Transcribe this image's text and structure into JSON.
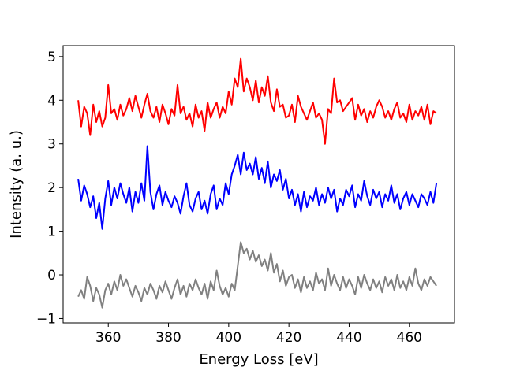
{
  "chart_data": {
    "type": "line",
    "title": "",
    "xlabel": "Energy Loss [eV]",
    "ylabel": "Intensity (a. u.)",
    "xlim": [
      345,
      475
    ],
    "ylim": [
      -1.1,
      5.25
    ],
    "xticks": [
      360,
      380,
      400,
      420,
      440,
      460
    ],
    "yticks": [
      -1,
      0,
      1,
      2,
      3,
      4,
      5
    ],
    "ytick_labels": [
      "−1",
      "0",
      "1",
      "2",
      "3",
      "4",
      "5"
    ],
    "grid": false,
    "legend": "none",
    "series": [
      {
        "color": "#ff0000",
        "x": [
          350,
          351,
          352,
          353,
          354,
          355,
          356,
          357,
          358,
          359,
          360,
          361,
          362,
          363,
          364,
          365,
          366,
          367,
          368,
          369,
          370,
          371,
          372,
          373,
          374,
          375,
          376,
          377,
          378,
          379,
          380,
          381,
          382,
          383,
          384,
          385,
          386,
          387,
          388,
          389,
          390,
          391,
          392,
          393,
          394,
          395,
          396,
          397,
          398,
          399,
          400,
          401,
          402,
          403,
          404,
          405,
          406,
          407,
          408,
          409,
          410,
          411,
          412,
          413,
          414,
          415,
          416,
          417,
          418,
          419,
          420,
          421,
          422,
          423,
          424,
          425,
          426,
          427,
          428,
          429,
          430,
          431,
          432,
          433,
          434,
          435,
          436,
          437,
          438,
          439,
          440,
          441,
          442,
          443,
          444,
          445,
          446,
          447,
          448,
          449,
          450,
          451,
          452,
          453,
          454,
          455,
          456,
          457,
          458,
          459,
          460,
          461,
          462,
          463,
          464,
          465,
          466,
          467,
          468,
          469
        ],
        "y": [
          4.0,
          3.4,
          3.85,
          3.7,
          3.2,
          3.9,
          3.5,
          3.75,
          3.4,
          3.6,
          4.35,
          3.7,
          3.8,
          3.55,
          3.9,
          3.65,
          3.8,
          4.05,
          3.75,
          4.1,
          3.85,
          3.6,
          3.9,
          4.15,
          3.75,
          3.6,
          3.85,
          3.5,
          3.9,
          3.7,
          3.45,
          3.8,
          3.65,
          4.35,
          3.7,
          3.85,
          3.55,
          3.7,
          3.4,
          3.9,
          3.6,
          3.75,
          3.3,
          3.95,
          3.6,
          3.8,
          3.95,
          3.6,
          3.85,
          3.7,
          4.2,
          3.9,
          4.5,
          4.3,
          4.95,
          4.2,
          4.5,
          4.3,
          4.0,
          4.45,
          3.95,
          4.3,
          4.1,
          4.55,
          3.95,
          3.75,
          4.25,
          3.85,
          3.9,
          3.6,
          3.65,
          3.9,
          3.5,
          4.1,
          3.85,
          3.7,
          3.55,
          3.75,
          3.95,
          3.6,
          3.7,
          3.55,
          3.0,
          3.8,
          3.7,
          4.5,
          3.95,
          4.0,
          3.75,
          3.85,
          3.95,
          4.05,
          3.55,
          3.9,
          3.65,
          3.8,
          3.5,
          3.75,
          3.6,
          3.85,
          4.0,
          3.85,
          3.6,
          3.75,
          3.55,
          3.8,
          3.95,
          3.6,
          3.7,
          3.5,
          3.9,
          3.55,
          3.75,
          3.65,
          3.85,
          3.55,
          3.9,
          3.45,
          3.75,
          3.7
        ]
      },
      {
        "color": "#0000ff",
        "x": [
          350,
          351,
          352,
          353,
          354,
          355,
          356,
          357,
          358,
          359,
          360,
          361,
          362,
          363,
          364,
          365,
          366,
          367,
          368,
          369,
          370,
          371,
          372,
          373,
          374,
          375,
          376,
          377,
          378,
          379,
          380,
          381,
          382,
          383,
          384,
          385,
          386,
          387,
          388,
          389,
          390,
          391,
          392,
          393,
          394,
          395,
          396,
          397,
          398,
          399,
          400,
          401,
          402,
          403,
          404,
          405,
          406,
          407,
          408,
          409,
          410,
          411,
          412,
          413,
          414,
          415,
          416,
          417,
          418,
          419,
          420,
          421,
          422,
          423,
          424,
          425,
          426,
          427,
          428,
          429,
          430,
          431,
          432,
          433,
          434,
          435,
          436,
          437,
          438,
          439,
          440,
          441,
          442,
          443,
          444,
          445,
          446,
          447,
          448,
          449,
          450,
          451,
          452,
          453,
          454,
          455,
          456,
          457,
          458,
          459,
          460,
          461,
          462,
          463,
          464,
          465,
          466,
          467,
          468,
          469
        ],
        "y": [
          2.2,
          1.7,
          2.05,
          1.85,
          1.55,
          1.8,
          1.3,
          1.65,
          1.05,
          1.75,
          2.15,
          1.6,
          2.0,
          1.75,
          2.1,
          1.85,
          1.65,
          2.0,
          1.45,
          1.9,
          1.65,
          2.1,
          1.7,
          2.95,
          1.9,
          1.5,
          1.85,
          2.05,
          1.6,
          1.9,
          1.7,
          1.55,
          1.8,
          1.65,
          1.4,
          1.8,
          2.1,
          1.6,
          1.45,
          1.75,
          1.9,
          1.5,
          1.7,
          1.4,
          1.85,
          2.05,
          1.5,
          1.75,
          1.6,
          2.1,
          1.85,
          2.3,
          2.5,
          2.75,
          2.3,
          2.8,
          2.4,
          2.55,
          2.3,
          2.7,
          2.2,
          2.45,
          2.1,
          2.6,
          2.0,
          2.3,
          2.15,
          2.4,
          1.95,
          2.2,
          1.75,
          1.95,
          1.6,
          1.85,
          1.45,
          1.9,
          1.55,
          1.8,
          1.7,
          2.0,
          1.6,
          1.85,
          1.65,
          2.0,
          1.75,
          1.95,
          1.45,
          1.75,
          1.6,
          1.95,
          1.8,
          2.05,
          1.55,
          1.85,
          1.7,
          2.15,
          1.8,
          1.6,
          1.95,
          1.75,
          1.9,
          1.55,
          1.85,
          1.7,
          2.05,
          1.65,
          1.85,
          1.5,
          1.75,
          1.9,
          1.6,
          1.85,
          1.7,
          1.55,
          1.85,
          1.75,
          1.6,
          1.9,
          1.65,
          2.1
        ]
      },
      {
        "color": "#808080",
        "x": [
          350,
          351,
          352,
          353,
          354,
          355,
          356,
          357,
          358,
          359,
          360,
          361,
          362,
          363,
          364,
          365,
          366,
          367,
          368,
          369,
          370,
          371,
          372,
          373,
          374,
          375,
          376,
          377,
          378,
          379,
          380,
          381,
          382,
          383,
          384,
          385,
          386,
          387,
          388,
          389,
          390,
          391,
          392,
          393,
          394,
          395,
          396,
          397,
          398,
          399,
          400,
          401,
          402,
          403,
          404,
          405,
          406,
          407,
          408,
          409,
          410,
          411,
          412,
          413,
          414,
          415,
          416,
          417,
          418,
          419,
          420,
          421,
          422,
          423,
          424,
          425,
          426,
          427,
          428,
          429,
          430,
          431,
          432,
          433,
          434,
          435,
          436,
          437,
          438,
          439,
          440,
          441,
          442,
          443,
          444,
          445,
          446,
          447,
          448,
          449,
          450,
          451,
          452,
          453,
          454,
          455,
          456,
          457,
          458,
          459,
          460,
          461,
          462,
          463,
          464,
          465,
          466,
          467,
          468,
          469
        ],
        "y": [
          -0.5,
          -0.35,
          -0.55,
          -0.05,
          -0.25,
          -0.6,
          -0.3,
          -0.45,
          -0.75,
          -0.35,
          -0.2,
          -0.45,
          -0.15,
          -0.35,
          0.0,
          -0.25,
          -0.1,
          -0.3,
          -0.5,
          -0.25,
          -0.4,
          -0.6,
          -0.3,
          -0.45,
          -0.2,
          -0.35,
          -0.55,
          -0.25,
          -0.4,
          -0.15,
          -0.35,
          -0.55,
          -0.3,
          -0.1,
          -0.45,
          -0.25,
          -0.5,
          -0.2,
          -0.35,
          -0.1,
          -0.3,
          -0.45,
          -0.2,
          -0.55,
          -0.15,
          -0.35,
          0.1,
          -0.25,
          -0.45,
          -0.3,
          -0.5,
          -0.2,
          -0.35,
          0.2,
          0.75,
          0.5,
          0.6,
          0.35,
          0.55,
          0.3,
          0.45,
          0.2,
          0.35,
          0.1,
          0.5,
          0.05,
          0.25,
          -0.15,
          0.1,
          -0.25,
          -0.05,
          0.0,
          -0.3,
          -0.1,
          -0.4,
          -0.05,
          -0.3,
          -0.15,
          -0.35,
          0.05,
          -0.2,
          -0.1,
          -0.35,
          0.15,
          -0.25,
          0.0,
          -0.2,
          -0.35,
          -0.05,
          -0.3,
          -0.1,
          -0.25,
          -0.45,
          -0.05,
          -0.3,
          0.0,
          -0.2,
          -0.35,
          -0.1,
          -0.3,
          -0.15,
          -0.4,
          -0.05,
          -0.25,
          -0.1,
          -0.35,
          0.0,
          -0.3,
          -0.15,
          -0.35,
          -0.05,
          -0.25,
          0.15,
          -0.2,
          -0.35,
          -0.1,
          -0.25,
          -0.05,
          -0.15,
          -0.25
        ]
      }
    ]
  }
}
